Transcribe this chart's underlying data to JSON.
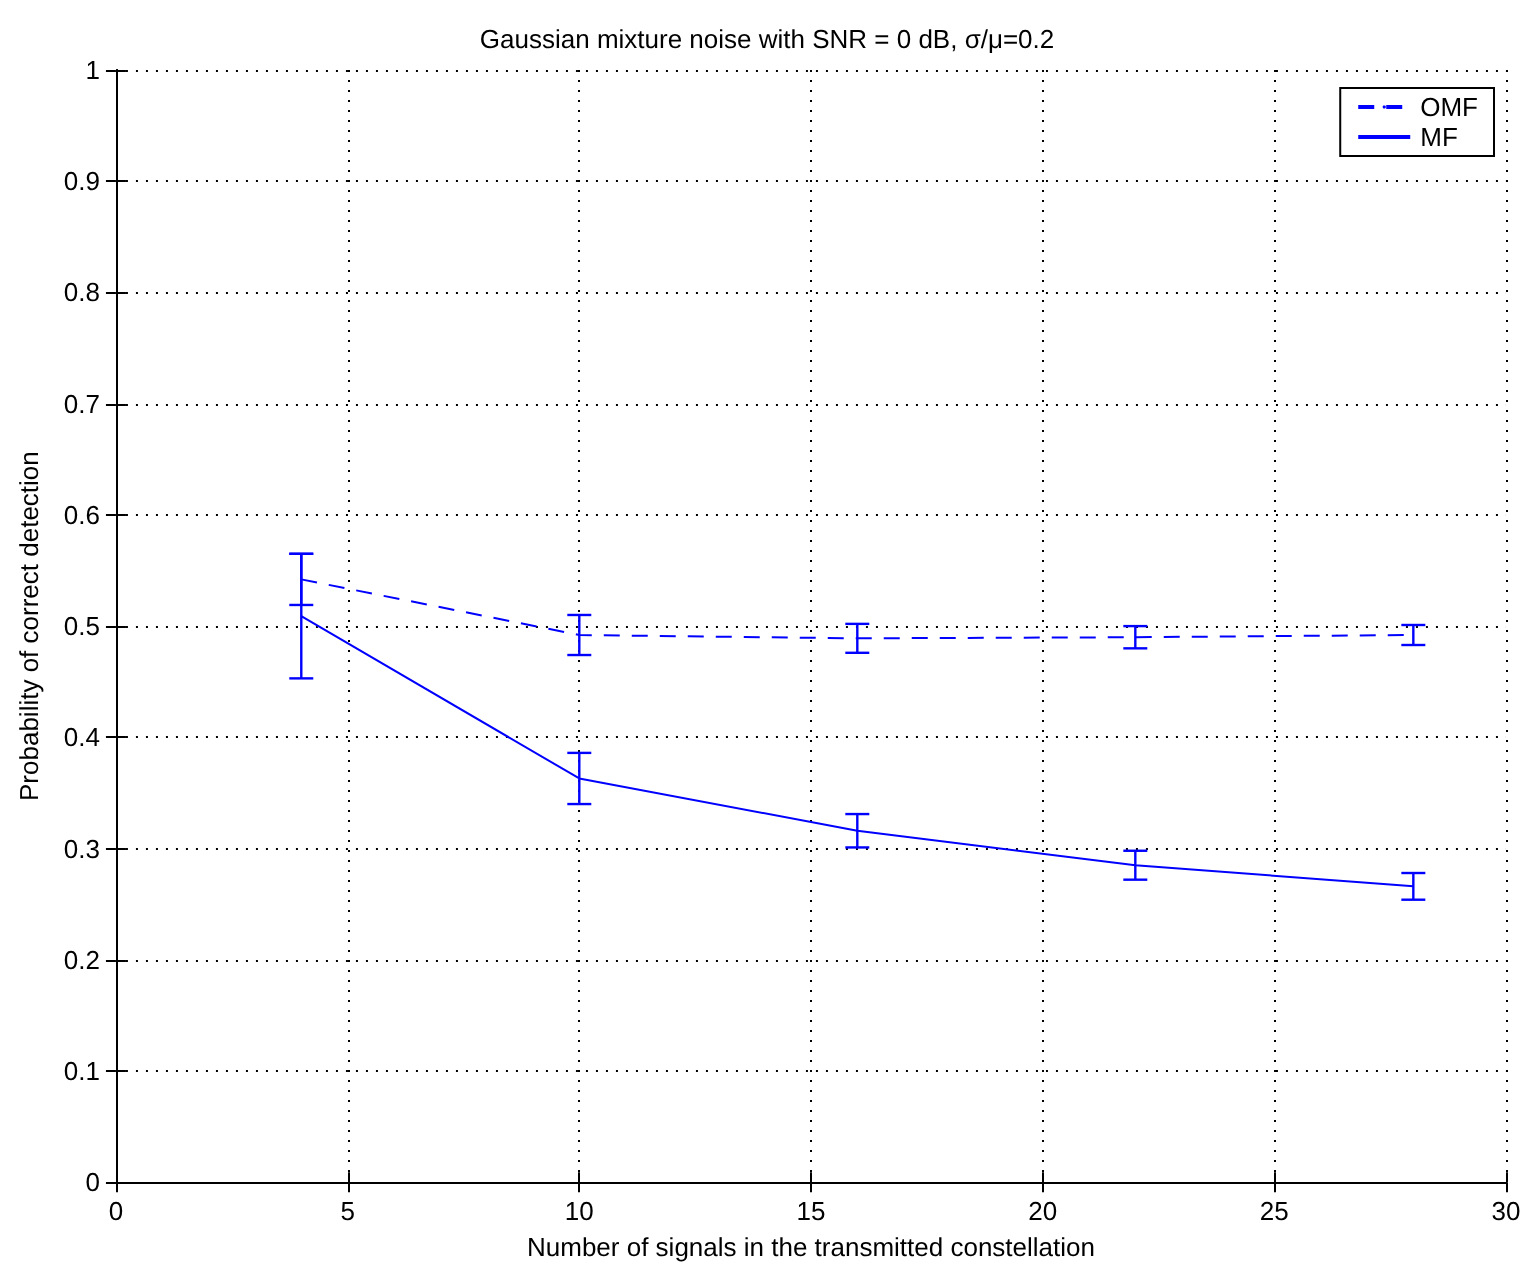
{
  "chart_data": {
    "type": "line",
    "title": "Gaussian mixture noise with SNR = 0 dB, σ/μ=0.2",
    "xlabel": "Number of signals in the transmitted constellation",
    "ylabel": "Probability of correct detection",
    "x": [
      4,
      10,
      16,
      22,
      28
    ],
    "series": [
      {
        "name": "OMF",
        "color": "#0000ff",
        "line_style": "dashed",
        "values": [
          0.542,
          0.492,
          0.489,
          0.49,
          0.492
        ],
        "errors": [
          0.023,
          0.018,
          0.013,
          0.01,
          0.009
        ]
      },
      {
        "name": "MF",
        "color": "#0000ff",
        "line_style": "solid",
        "values": [
          0.509,
          0.363,
          0.316,
          0.285,
          0.266
        ],
        "errors": [
          0.056,
          0.023,
          0.015,
          0.013,
          0.012
        ]
      }
    ],
    "xlim": [
      0,
      30
    ],
    "xticks": [
      0,
      5,
      10,
      15,
      20,
      25,
      30
    ],
    "ylim": [
      0,
      1
    ],
    "yticks": [
      0,
      0.1,
      0.2,
      0.3,
      0.4,
      0.5,
      0.6,
      0.7,
      0.8,
      0.9,
      1
    ],
    "grid": true,
    "legend": "top right",
    "marker": "none"
  }
}
